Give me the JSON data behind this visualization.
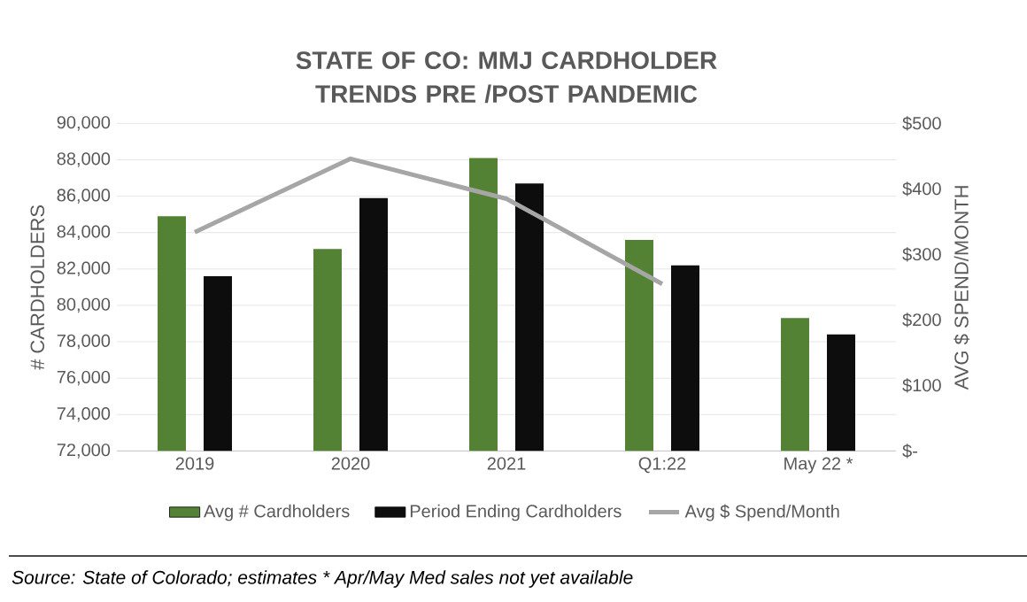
{
  "chart_data": {
    "type": "bar",
    "title": "STATE OF CO: MMJ CARDHOLDER TRENDS PRE /POST PANDEMIC",
    "ylabel": "# CARDHOLDERS",
    "y2label": "AVG $ SPEND/MONTH",
    "categories": [
      "2019",
      "2020",
      "2021",
      "Q1:22",
      "May 22 *"
    ],
    "series": [
      {
        "name": "Avg # Cardholders",
        "color": "#548235",
        "values": [
          84900,
          83100,
          88100,
          83600,
          79300
        ]
      },
      {
        "name": "Period Ending Cardholders",
        "color": "#0d0d0d",
        "values": [
          81600,
          85900,
          86700,
          82200,
          78400
        ]
      },
      {
        "name": "Avg $ Spend/Month",
        "type": "line",
        "axis": "y2",
        "color": "#a6a6a6",
        "values": [
          334,
          446,
          385,
          255,
          null
        ]
      }
    ],
    "ylim": [
      72000,
      90000
    ],
    "yticks": [
      {
        "value": 72000,
        "label": "72,000"
      },
      {
        "value": 74000,
        "label": "74,000"
      },
      {
        "value": 76000,
        "label": "76,000"
      },
      {
        "value": 78000,
        "label": "78,000"
      },
      {
        "value": 80000,
        "label": "80,000"
      },
      {
        "value": 82000,
        "label": "82,000"
      },
      {
        "value": 84000,
        "label": "84,000"
      },
      {
        "value": 86000,
        "label": "86,000"
      },
      {
        "value": 88000,
        "label": "88,000"
      },
      {
        "value": 90000,
        "label": "90,000"
      }
    ],
    "y2lim": [
      0,
      500
    ],
    "y2ticks": [
      {
        "value": 0,
        "label": "$-"
      },
      {
        "value": 100,
        "label": "$100"
      },
      {
        "value": 200,
        "label": "$200"
      },
      {
        "value": 300,
        "label": "$300"
      },
      {
        "value": 400,
        "label": "$400"
      },
      {
        "value": 500,
        "label": "$500"
      }
    ],
    "grid": "y",
    "legend": "bottom",
    "marker": "none",
    "line_style": "solid",
    "annotations": [
      "Source: State of Colorado; estimates * Apr/May Med sales not yet available"
    ]
  }
}
